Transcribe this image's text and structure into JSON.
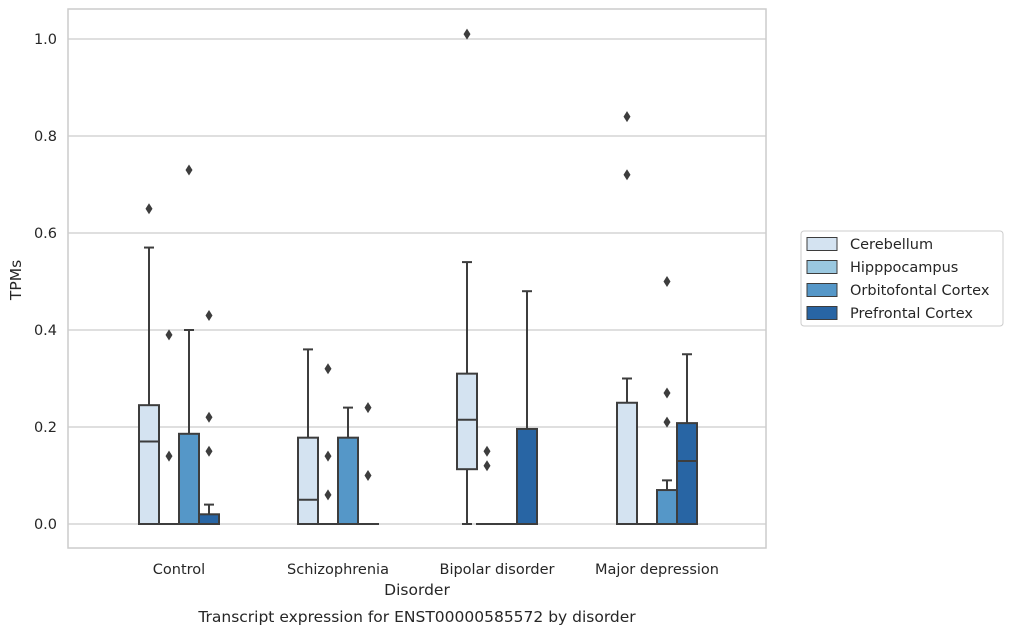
{
  "caption": "Transcript expression for ENST00000585572 by disorder",
  "colors": {
    "Cerebellum": "#d4e3f1",
    "Hipppocampus": "#9ac8e0",
    "Orbitofontal Cortex": "#5597c8",
    "Prefrontal Cortex": "#2865a4",
    "box_edge": "#3d3d3d",
    "grid": "#cccccc",
    "frame": "#cccccc"
  },
  "chart_data": {
    "type": "box",
    "xlabel": "Disorder",
    "ylabel": "TPMs",
    "ylim": [
      -0.05,
      1.06
    ],
    "yticks": [
      0.0,
      0.2,
      0.4,
      0.6,
      0.8,
      1.0
    ],
    "ytick_labels": [
      "0.0",
      "0.2",
      "0.4",
      "0.6",
      "0.8",
      "1.0"
    ],
    "grid": true,
    "legend_position": "right",
    "categories": [
      "Control",
      "Schizophrenia",
      "Bipolar disorder",
      "Major depression"
    ],
    "series": [
      {
        "name": "Cerebellum",
        "boxes": [
          {
            "q1": 0.0,
            "median": 0.17,
            "q3": 0.245,
            "whisker_low": 0.0,
            "whisker_high": 0.57,
            "outliers": [
              0.65
            ]
          },
          {
            "q1": 0.0,
            "median": 0.05,
            "q3": 0.178,
            "whisker_low": 0.0,
            "whisker_high": 0.36,
            "outliers": []
          },
          {
            "q1": 0.113,
            "median": 0.215,
            "q3": 0.31,
            "whisker_low": 0.0,
            "whisker_high": 0.54,
            "outliers": [
              1.01
            ]
          },
          {
            "q1": 0.0,
            "median": 0.0,
            "q3": 0.25,
            "whisker_low": 0.0,
            "whisker_high": 0.3,
            "outliers": [
              0.72,
              0.84
            ]
          }
        ]
      },
      {
        "name": "Hipppocampus",
        "boxes": [
          {
            "q1": 0.0,
            "median": 0.0,
            "q3": 0.0,
            "whisker_low": 0.0,
            "whisker_high": 0.0,
            "outliers": [
              0.14,
              0.39
            ]
          },
          {
            "q1": 0.0,
            "median": 0.0,
            "q3": 0.0,
            "whisker_low": 0.0,
            "whisker_high": 0.0,
            "outliers": [
              0.06,
              0.14,
              0.32
            ]
          },
          {
            "q1": 0.0,
            "median": 0.0,
            "q3": 0.0,
            "whisker_low": 0.0,
            "whisker_high": 0.0,
            "outliers": [
              0.12,
              0.15
            ]
          },
          {
            "q1": 0.0,
            "median": 0.0,
            "q3": 0.0,
            "whisker_low": 0.0,
            "whisker_high": 0.0,
            "outliers": []
          }
        ]
      },
      {
        "name": "Orbitofontal Cortex",
        "boxes": [
          {
            "q1": 0.0,
            "median": 0.0,
            "q3": 0.186,
            "whisker_low": 0.0,
            "whisker_high": 0.4,
            "outliers": [
              0.73
            ]
          },
          {
            "q1": 0.0,
            "median": 0.0,
            "q3": 0.178,
            "whisker_low": 0.0,
            "whisker_high": 0.24,
            "outliers": []
          },
          {
            "q1": 0.0,
            "median": 0.0,
            "q3": 0.0,
            "whisker_low": 0.0,
            "whisker_high": 0.0,
            "outliers": []
          },
          {
            "q1": 0.0,
            "median": 0.0,
            "q3": 0.07,
            "whisker_low": 0.0,
            "whisker_high": 0.09,
            "outliers": [
              0.21,
              0.27,
              0.5
            ]
          }
        ]
      },
      {
        "name": "Prefrontal Cortex",
        "boxes": [
          {
            "q1": 0.0,
            "median": 0.0,
            "q3": 0.02,
            "whisker_low": 0.0,
            "whisker_high": 0.04,
            "outliers": [
              0.15,
              0.22,
              0.43
            ]
          },
          {
            "q1": 0.0,
            "median": 0.0,
            "q3": 0.0,
            "whisker_low": 0.0,
            "whisker_high": 0.0,
            "outliers": [
              0.1,
              0.24
            ]
          },
          {
            "q1": 0.0,
            "median": 0.0,
            "q3": 0.196,
            "whisker_low": 0.0,
            "whisker_high": 0.48,
            "outliers": []
          },
          {
            "q1": 0.0,
            "median": 0.13,
            "q3": 0.208,
            "whisker_low": 0.0,
            "whisker_high": 0.35,
            "outliers": []
          }
        ]
      }
    ]
  }
}
